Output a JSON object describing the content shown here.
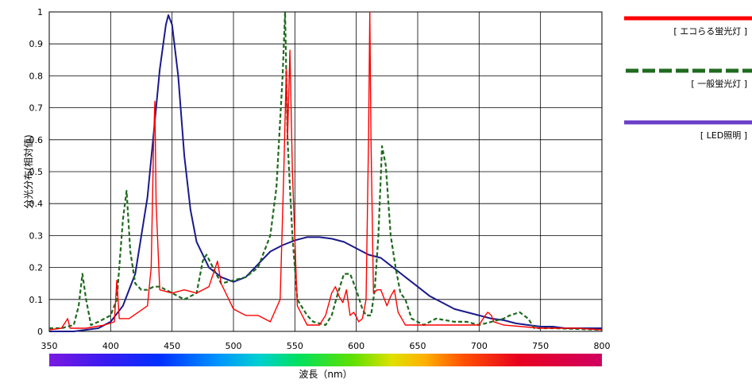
{
  "chart_data": {
    "type": "line",
    "xlabel": "波長（nm）",
    "ylabel": "分光分布(相対値)",
    "xlim": [
      350,
      800
    ],
    "ylim": [
      0,
      1
    ],
    "x_ticks": [
      "350",
      "400",
      "450",
      "500",
      "550",
      "600",
      "650",
      "700",
      "750",
      "800"
    ],
    "y_ticks": [
      "0",
      "0.1",
      "0.2",
      "0.3",
      "0.4",
      "0.5",
      "0.6",
      "0.7",
      "0.8",
      "0.9",
      "1"
    ],
    "grid": "vertical and horizontal",
    "legend_position": "right",
    "series": [
      {
        "name": "[ エコらる蛍光灯 ]",
        "color": "#ff0000",
        "style": "solid",
        "points": [
          [
            350,
            0.005
          ],
          [
            360,
            0.01
          ],
          [
            365,
            0.04
          ],
          [
            367,
            0.01
          ],
          [
            380,
            0.01
          ],
          [
            395,
            0.02
          ],
          [
            403,
            0.03
          ],
          [
            405,
            0.16
          ],
          [
            407,
            0.04
          ],
          [
            415,
            0.04
          ],
          [
            430,
            0.08
          ],
          [
            433,
            0.2
          ],
          [
            435,
            0.6
          ],
          [
            436,
            0.72
          ],
          [
            437,
            0.4
          ],
          [
            440,
            0.13
          ],
          [
            450,
            0.12
          ],
          [
            460,
            0.13
          ],
          [
            470,
            0.12
          ],
          [
            480,
            0.14
          ],
          [
            487,
            0.22
          ],
          [
            490,
            0.15
          ],
          [
            500,
            0.07
          ],
          [
            505,
            0.06
          ],
          [
            510,
            0.05
          ],
          [
            520,
            0.05
          ],
          [
            530,
            0.03
          ],
          [
            538,
            0.1
          ],
          [
            541,
            0.5
          ],
          [
            543,
            0.82
          ],
          [
            544,
            0.6
          ],
          [
            546,
            0.88
          ],
          [
            548,
            0.5
          ],
          [
            552,
            0.08
          ],
          [
            560,
            0.02
          ],
          [
            570,
            0.02
          ],
          [
            575,
            0.05
          ],
          [
            580,
            0.12
          ],
          [
            583,
            0.14
          ],
          [
            586,
            0.11
          ],
          [
            589,
            0.09
          ],
          [
            592,
            0.13
          ],
          [
            595,
            0.05
          ],
          [
            598,
            0.06
          ],
          [
            602,
            0.03
          ],
          [
            605,
            0.04
          ],
          [
            608,
            0.1
          ],
          [
            610,
            0.6
          ],
          [
            611,
            1.0
          ],
          [
            612,
            0.6
          ],
          [
            614,
            0.12
          ],
          [
            617,
            0.13
          ],
          [
            620,
            0.13
          ],
          [
            625,
            0.08
          ],
          [
            628,
            0.11
          ],
          [
            631,
            0.13
          ],
          [
            634,
            0.06
          ],
          [
            640,
            0.02
          ],
          [
            660,
            0.02
          ],
          [
            680,
            0.02
          ],
          [
            700,
            0.02
          ],
          [
            705,
            0.05
          ],
          [
            707,
            0.06
          ],
          [
            710,
            0.05
          ],
          [
            712,
            0.03
          ],
          [
            720,
            0.02
          ],
          [
            750,
            0.01
          ],
          [
            780,
            0.01
          ],
          [
            800,
            0.005
          ]
        ]
      },
      {
        "name": "[ 一般蛍光灯 ]",
        "color": "#1e6b1e",
        "style": "dashed",
        "points": [
          [
            350,
            0.01
          ],
          [
            360,
            0.01
          ],
          [
            370,
            0.02
          ],
          [
            374,
            0.08
          ],
          [
            377,
            0.18
          ],
          [
            380,
            0.1
          ],
          [
            384,
            0.02
          ],
          [
            390,
            0.03
          ],
          [
            400,
            0.05
          ],
          [
            405,
            0.1
          ],
          [
            410,
            0.35
          ],
          [
            413,
            0.44
          ],
          [
            416,
            0.25
          ],
          [
            420,
            0.15
          ],
          [
            425,
            0.13
          ],
          [
            430,
            0.13
          ],
          [
            435,
            0.14
          ],
          [
            440,
            0.14
          ],
          [
            450,
            0.12
          ],
          [
            460,
            0.1
          ],
          [
            470,
            0.12
          ],
          [
            475,
            0.22
          ],
          [
            478,
            0.24
          ],
          [
            482,
            0.21
          ],
          [
            490,
            0.15
          ],
          [
            500,
            0.16
          ],
          [
            510,
            0.17
          ],
          [
            520,
            0.2
          ],
          [
            530,
            0.3
          ],
          [
            535,
            0.45
          ],
          [
            540,
            0.8
          ],
          [
            542,
            1.0
          ],
          [
            544,
            0.6
          ],
          [
            548,
            0.3
          ],
          [
            552,
            0.1
          ],
          [
            560,
            0.05
          ],
          [
            565,
            0.03
          ],
          [
            575,
            0.02
          ],
          [
            580,
            0.05
          ],
          [
            585,
            0.12
          ],
          [
            590,
            0.18
          ],
          [
            595,
            0.18
          ],
          [
            600,
            0.13
          ],
          [
            605,
            0.07
          ],
          [
            608,
            0.05
          ],
          [
            612,
            0.05
          ],
          [
            615,
            0.13
          ],
          [
            618,
            0.3
          ],
          [
            621,
            0.58
          ],
          [
            624,
            0.52
          ],
          [
            628,
            0.3
          ],
          [
            632,
            0.2
          ],
          [
            636,
            0.12
          ],
          [
            640,
            0.1
          ],
          [
            645,
            0.04
          ],
          [
            655,
            0.02
          ],
          [
            665,
            0.04
          ],
          [
            680,
            0.03
          ],
          [
            690,
            0.03
          ],
          [
            700,
            0.02
          ],
          [
            710,
            0.03
          ],
          [
            720,
            0.04
          ],
          [
            725,
            0.05
          ],
          [
            733,
            0.06
          ],
          [
            740,
            0.04
          ],
          [
            745,
            0.01
          ],
          [
            760,
            0.01
          ],
          [
            800,
            0.005
          ]
        ]
      },
      {
        "name": "[ LED照明 ]",
        "color": "#1a1a8c",
        "style": "solid",
        "points": [
          [
            350,
            0.0
          ],
          [
            370,
            0.0
          ],
          [
            380,
            0.005
          ],
          [
            390,
            0.01
          ],
          [
            400,
            0.03
          ],
          [
            410,
            0.08
          ],
          [
            420,
            0.18
          ],
          [
            430,
            0.42
          ],
          [
            435,
            0.62
          ],
          [
            440,
            0.82
          ],
          [
            445,
            0.96
          ],
          [
            447,
            0.99
          ],
          [
            450,
            0.96
          ],
          [
            455,
            0.8
          ],
          [
            460,
            0.55
          ],
          [
            465,
            0.38
          ],
          [
            470,
            0.28
          ],
          [
            480,
            0.2
          ],
          [
            490,
            0.17
          ],
          [
            500,
            0.155
          ],
          [
            510,
            0.17
          ],
          [
            520,
            0.21
          ],
          [
            530,
            0.25
          ],
          [
            540,
            0.27
          ],
          [
            550,
            0.285
          ],
          [
            560,
            0.295
          ],
          [
            570,
            0.295
          ],
          [
            580,
            0.29
          ],
          [
            590,
            0.28
          ],
          [
            600,
            0.26
          ],
          [
            610,
            0.24
          ],
          [
            620,
            0.23
          ],
          [
            630,
            0.2
          ],
          [
            640,
            0.17
          ],
          [
            650,
            0.14
          ],
          [
            660,
            0.11
          ],
          [
            670,
            0.09
          ],
          [
            680,
            0.07
          ],
          [
            690,
            0.06
          ],
          [
            700,
            0.05
          ],
          [
            710,
            0.04
          ],
          [
            720,
            0.035
          ],
          [
            730,
            0.025
          ],
          [
            740,
            0.02
          ],
          [
            750,
            0.015
          ],
          [
            760,
            0.015
          ],
          [
            770,
            0.01
          ],
          [
            780,
            0.01
          ],
          [
            790,
            0.01
          ],
          [
            800,
            0.01
          ]
        ]
      }
    ]
  }
}
